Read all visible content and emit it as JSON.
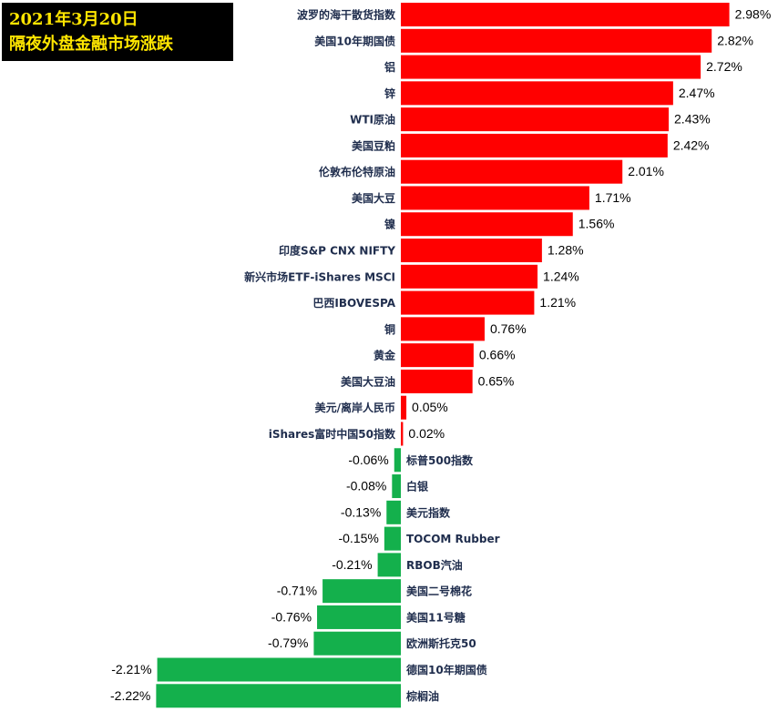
{
  "header": {
    "line1": "2021年3月20日",
    "line2": "隔夜外盘金融市场涨跌"
  },
  "colors": {
    "positive": "#ff0000",
    "negative": "#14b04c",
    "label": "#1f2d4d"
  },
  "chart_data": {
    "type": "bar",
    "orientation": "horizontal",
    "title": "",
    "xlabel": "",
    "ylabel": "",
    "grid": false,
    "legend": "none",
    "unit": "%",
    "categories": [
      "波罗的海干散货指数",
      "美国10年期国债",
      "铝",
      "锌",
      "WTI原油",
      "美国豆粕",
      "伦敦布伦特原油",
      "美国大豆",
      "镍",
      "印度S&P CNX NIFTY",
      "新兴市场ETF-iShares MSCI",
      "巴西IBOVESPA",
      "铜",
      "黄金",
      "美国大豆油",
      "美元/离岸人民币",
      "iShares富时中国50指数",
      "标普500指数",
      "白银",
      "美元指数",
      "TOCOM Rubber",
      "RBOB汽油",
      "美国二号棉花",
      "美国11号糖",
      "欧洲斯托克50",
      "德国10年期国债",
      "棕榈油"
    ],
    "values": [
      2.98,
      2.82,
      2.72,
      2.47,
      2.43,
      2.42,
      2.01,
      1.71,
      1.56,
      1.28,
      1.24,
      1.21,
      0.76,
      0.66,
      0.65,
      0.05,
      0.02,
      -0.06,
      -0.08,
      -0.13,
      -0.15,
      -0.21,
      -0.71,
      -0.76,
      -0.79,
      -2.21,
      -2.22
    ],
    "value_labels": [
      "2.98%",
      "2.82%",
      "2.72%",
      "2.47%",
      "2.43%",
      "2.42%",
      "2.01%",
      "1.71%",
      "1.56%",
      "1.28%",
      "1.24%",
      "1.21%",
      "0.76%",
      "0.66%",
      "0.65%",
      "0.05%",
      "0.02%",
      "-0.06%",
      "-0.08%",
      "-0.13%",
      "-0.15%",
      "-0.21%",
      "-0.71%",
      "-0.76%",
      "-0.79%",
      "-2.21%",
      "-2.22%"
    ]
  }
}
